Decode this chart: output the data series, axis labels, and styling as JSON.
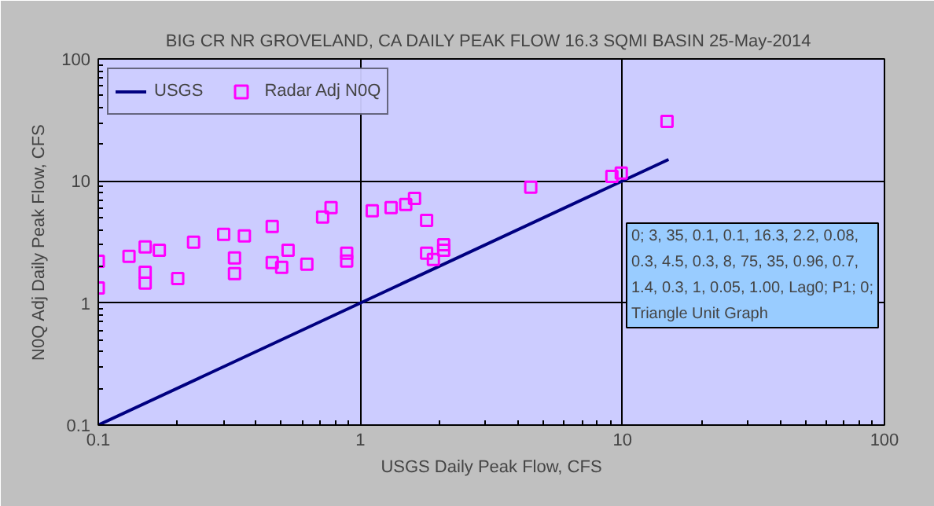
{
  "chart_data": {
    "type": "scatter",
    "title": "BIG CR  NR GROVELAND, CA DAILY PEAK FLOW 16.3 SQMI BASIN 25-May-2014",
    "xlabel": "USGS Daily Peak Flow, CFS",
    "ylabel": "N0Q Adj Daily Peak Flow, CFS",
    "log": "xy",
    "xlim": [
      0.1,
      100
    ],
    "ylim": [
      0.1,
      100
    ],
    "xticks": [
      0.1,
      1,
      10,
      100
    ],
    "yticks": [
      0.1,
      1,
      10,
      100
    ],
    "grid": true,
    "legend": "top left",
    "series": [
      {
        "name": "USGS",
        "type": "line",
        "color": "#000080",
        "marker": "none",
        "line_style": "solid",
        "x": [
          0.1,
          15
        ],
        "values": [
          0.1,
          15
        ]
      },
      {
        "name": "Radar Adj N0Q",
        "type": "scatter",
        "color": "#ff00ff",
        "marker": "square",
        "x": [
          0.1,
          0.1,
          0.131,
          0.151,
          0.151,
          0.151,
          0.171,
          0.201,
          0.231,
          0.301,
          0.331,
          0.331,
          0.361,
          0.461,
          0.461,
          0.501,
          0.53,
          0.625,
          0.718,
          0.773,
          0.887,
          0.887,
          1.11,
          1.31,
          1.49,
          1.61,
          1.79,
          1.79,
          1.9,
          2.08,
          2.08,
          4.47,
          9.12,
          9.9,
          14.8
        ],
        "values": [
          2.2,
          1.33,
          2.41,
          2.88,
          1.79,
          1.46,
          2.71,
          1.59,
          3.15,
          3.65,
          2.34,
          1.74,
          3.55,
          4.24,
          2.14,
          1.96,
          2.71,
          2.08,
          5.06,
          6.04,
          2.56,
          2.21,
          5.69,
          6.04,
          6.41,
          7.21,
          4.76,
          2.56,
          2.27,
          3.0,
          2.71,
          8.89,
          10.9,
          11.6,
          30.8
        ]
      }
    ],
    "annotations": [
      "0; 3, 35, 0.1, 0.1, 16.3, 2.2, 0.08, 0.3, 4.5, 0.3, 8, 75, 35, 0.96, 0.7, 1.4, 0.3, 1, 0.05, 1.00, Lag0; P1; 0; Triangle Unit Graph"
    ]
  }
}
